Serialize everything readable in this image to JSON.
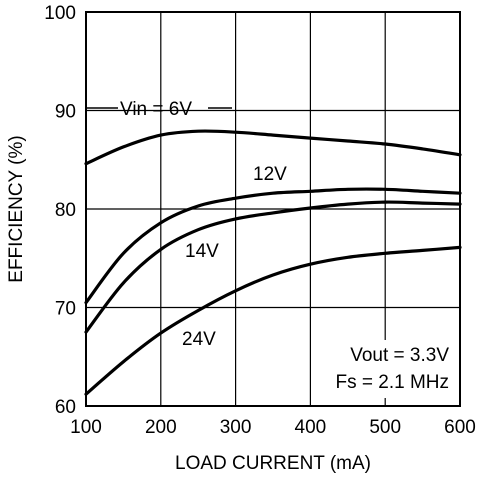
{
  "chart_data": {
    "type": "line",
    "xlabel": "LOAD CURRENT (mA)",
    "ylabel": "EFFICIENCY (%)",
    "xlim": [
      100,
      600
    ],
    "ylim": [
      60,
      100
    ],
    "x_ticks": [
      "100",
      "200",
      "300",
      "400",
      "500",
      "600"
    ],
    "y_ticks": [
      "60",
      "70",
      "80",
      "90",
      "100"
    ],
    "grid": true,
    "series": [
      {
        "name": "Vin = 6V",
        "x": [
          100,
          150,
          200,
          250,
          300,
          350,
          400,
          450,
          500,
          550,
          600
        ],
        "y": [
          84.6,
          86.3,
          87.5,
          87.9,
          87.8,
          87.5,
          87.2,
          86.9,
          86.6,
          86.1,
          85.5
        ]
      },
      {
        "name": "12V",
        "x": [
          100,
          150,
          200,
          250,
          300,
          350,
          400,
          450,
          500,
          550,
          600
        ],
        "y": [
          70.5,
          75.5,
          78.6,
          80.3,
          81.1,
          81.6,
          81.8,
          82.0,
          82.0,
          81.8,
          81.6
        ]
      },
      {
        "name": "14V",
        "x": [
          100,
          150,
          200,
          250,
          300,
          350,
          400,
          450,
          500,
          550,
          600
        ],
        "y": [
          67.5,
          72.5,
          75.9,
          77.9,
          79.0,
          79.6,
          80.1,
          80.5,
          80.7,
          80.6,
          80.5
        ]
      },
      {
        "name": "24V",
        "x": [
          100,
          150,
          200,
          250,
          300,
          350,
          400,
          450,
          500,
          550,
          600
        ],
        "y": [
          61.2,
          64.5,
          67.4,
          69.7,
          71.7,
          73.3,
          74.4,
          75.1,
          75.5,
          75.8,
          76.1
        ]
      }
    ],
    "annotations": [
      "Vout = 3.3V",
      "Fs = 2.1 MHz"
    ]
  }
}
